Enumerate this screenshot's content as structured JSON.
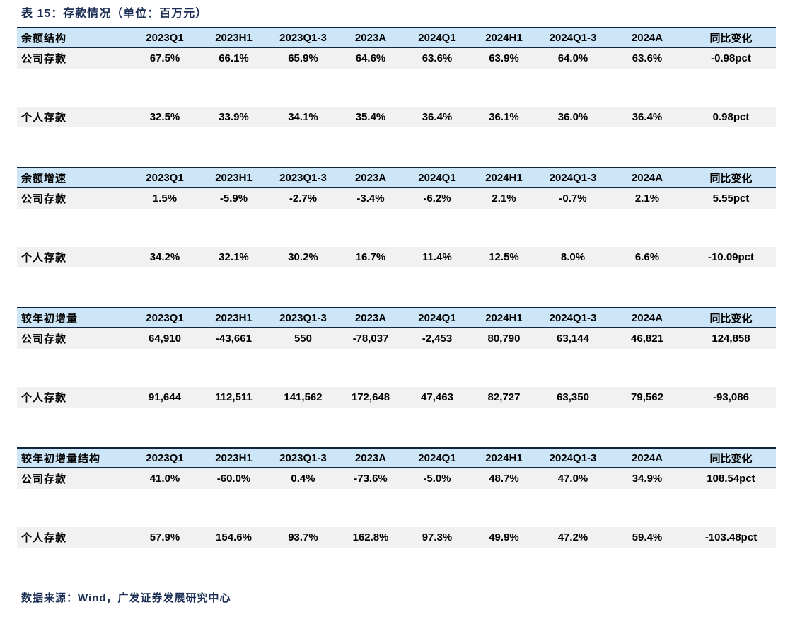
{
  "title": "表 15：存款情况（单位：百万元）",
  "source": "数据来源：Wind，广发证券发展研究中心",
  "columns": [
    "2023Q1",
    "2023H1",
    "2023Q1-3",
    "2023A",
    "2024Q1",
    "2024H1",
    "2024Q1-3",
    "2024A",
    "同比变化"
  ],
  "sections": [
    {
      "header": "余额结构",
      "rows": [
        {
          "label": "公司存款",
          "values": [
            "67.5%",
            "66.1%",
            "65.9%",
            "64.6%",
            "63.6%",
            "63.9%",
            "64.0%",
            "63.6%",
            "-0.98pct"
          ]
        },
        {
          "label": "个人存款",
          "values": [
            "32.5%",
            "33.9%",
            "34.1%",
            "35.4%",
            "36.4%",
            "36.1%",
            "36.0%",
            "36.4%",
            "0.98pct"
          ]
        }
      ]
    },
    {
      "header": "余额增速",
      "rows": [
        {
          "label": "公司存款",
          "values": [
            "1.5%",
            "-5.9%",
            "-2.7%",
            "-3.4%",
            "-6.2%",
            "2.1%",
            "-0.7%",
            "2.1%",
            "5.55pct"
          ]
        },
        {
          "label": "个人存款",
          "values": [
            "34.2%",
            "32.1%",
            "30.2%",
            "16.7%",
            "11.4%",
            "12.5%",
            "8.0%",
            "6.6%",
            "-10.09pct"
          ]
        }
      ]
    },
    {
      "header": "较年初增量",
      "rows": [
        {
          "label": "公司存款",
          "values": [
            "64,910",
            "-43,661",
            "550",
            "-78,037",
            "-2,453",
            "80,790",
            "63,144",
            "46,821",
            "124,858"
          ]
        },
        {
          "label": "个人存款",
          "values": [
            "91,644",
            "112,511",
            "141,562",
            "172,648",
            "47,463",
            "82,727",
            "63,350",
            "79,562",
            "-93,086"
          ]
        }
      ]
    },
    {
      "header": "较年初增量结构",
      "rows": [
        {
          "label": "公司存款",
          "values": [
            "41.0%",
            "-60.0%",
            "0.4%",
            "-73.6%",
            "-5.0%",
            "48.7%",
            "47.0%",
            "34.9%",
            "108.54pct"
          ]
        },
        {
          "label": "个人存款",
          "values": [
            "57.9%",
            "154.6%",
            "93.7%",
            "162.8%",
            "97.3%",
            "49.9%",
            "47.2%",
            "59.4%",
            "-103.48pct"
          ]
        }
      ]
    }
  ],
  "colors": {
    "accent_navy": "#1B2E54",
    "header_bg": "#CDE6F7",
    "row_bg": "#F1F1F1",
    "border": "#10243E",
    "text": "#000000"
  }
}
